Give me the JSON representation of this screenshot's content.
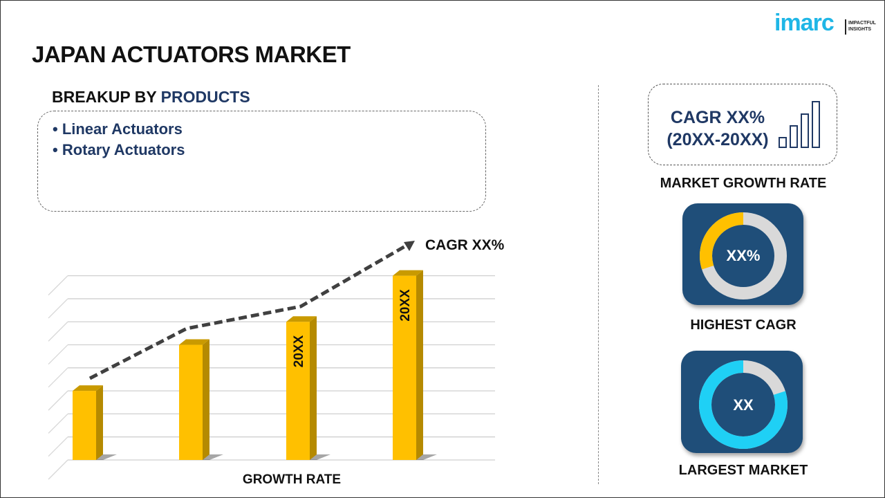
{
  "title": "JAPAN ACTUATORS MARKET",
  "logo": {
    "brand": "imarc",
    "tagline_1": "IMPACTFUL",
    "tagline_2": "INSIGHTS"
  },
  "breakup": {
    "prefix": "BREAKUP BY ",
    "highlight": "PRODUCTS",
    "items": [
      "• Linear Actuators",
      "• Rotary Actuators"
    ]
  },
  "chart_data": {
    "type": "bar",
    "style": "3d-bars-with-dashed-trend-arrow",
    "categories": [
      "",
      "",
      "",
      ""
    ],
    "values": [
      3,
      5,
      6,
      8
    ],
    "bar_labels": [
      "",
      "",
      "20XX",
      "20XX"
    ],
    "trend_annotation": "CAGR XX%",
    "xlabel": "GROWTH RATE",
    "ylim": [
      0,
      8.5
    ],
    "grid": true,
    "colors": {
      "bar": "#ffc000",
      "bar_side": "#b58a00",
      "trend": "#404040"
    }
  },
  "right": {
    "cagr_line1": "CAGR XX%",
    "cagr_line2": "(20XX-20XX)",
    "growth_label": "MARKET GROWTH RATE",
    "highest": {
      "value": "XX%",
      "label": "HIGHEST CAGR",
      "fraction": 0.3,
      "color": "#ffc000"
    },
    "largest": {
      "value": "XX",
      "label": "LARGEST MARKET",
      "fraction": 0.8,
      "color": "#1fd0f5"
    },
    "card_color": "#1f4e79"
  }
}
